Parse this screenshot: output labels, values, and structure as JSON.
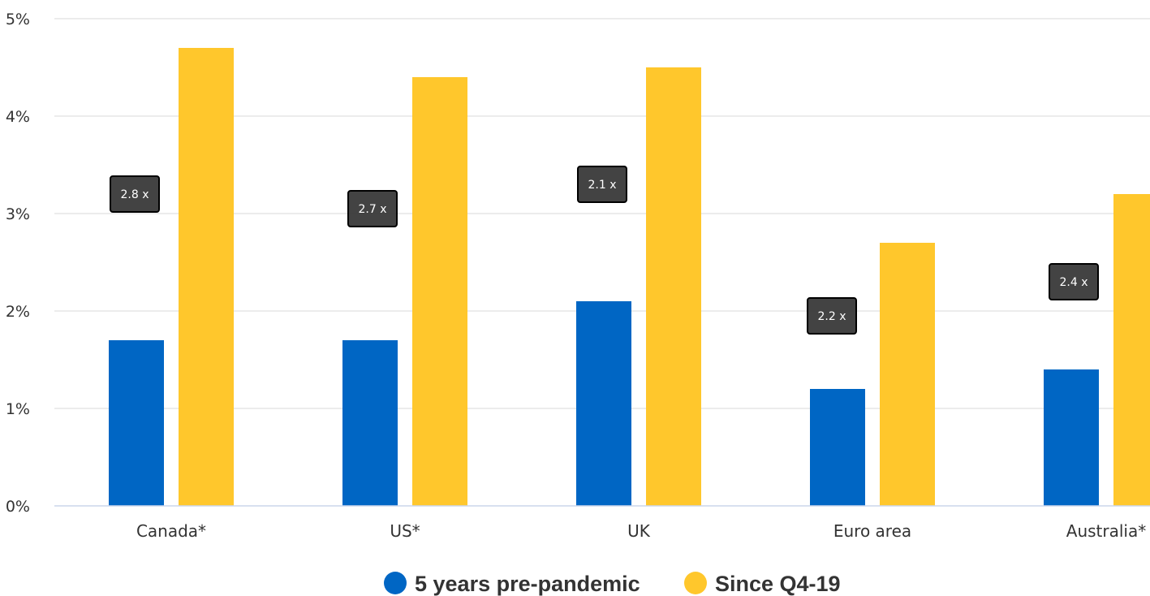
{
  "chart_data": {
    "type": "bar",
    "categories": [
      "Canada*",
      "US*",
      "UK",
      "Euro area",
      "Australia*"
    ],
    "series": [
      {
        "name": "5 years pre-pandemic",
        "values": [
          1.7,
          1.7,
          2.1,
          1.2,
          1.4
        ],
        "color": "#0066c4"
      },
      {
        "name": "Since Q4-19",
        "values": [
          4.7,
          4.4,
          4.5,
          2.7,
          3.2
        ],
        "color": "#ffc72c"
      }
    ],
    "annotations": [
      "2.8 x",
      "2.7 x",
      "2.1 x",
      "2.2 x",
      "2.4 x"
    ],
    "ylim": [
      0,
      5
    ],
    "yticks": [
      "0%",
      "1%",
      "2%",
      "3%",
      "4%",
      "5%"
    ],
    "grid": true,
    "legend_position": "bottom-center",
    "colors": {
      "grid": "#e6e6e6",
      "axis": "#ccd6eb",
      "annotation_bg": "#333333"
    }
  }
}
